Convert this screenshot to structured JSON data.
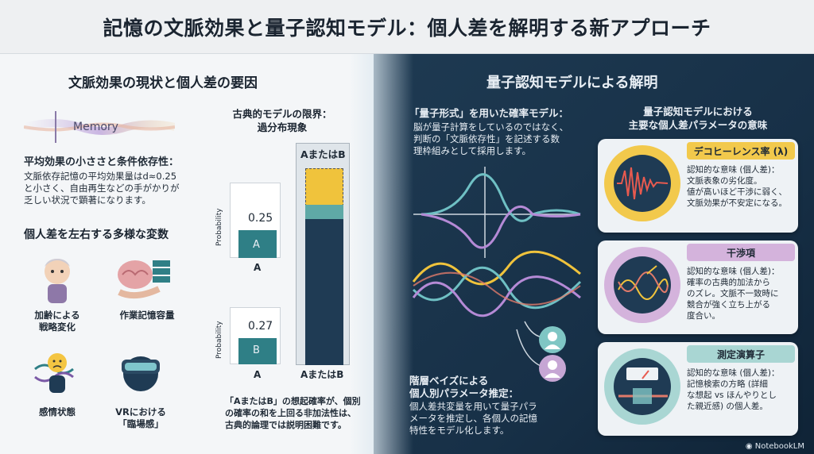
{
  "header": {
    "title": "記憶の文脈効果と量子認知モデル：個人差を解明する新アプローチ"
  },
  "left": {
    "title": "文脈効果の現状と個人差の要因",
    "memory_label": "Memory",
    "point1_title": "平均効果の小ささと条件依存性：",
    "point1_lines": [
      "文脈依存記憶の平均効果量はd≈0.25",
      "と小さく、自由再生などの手がかりが",
      "乏しい状況で顕著になります。"
    ],
    "vars_title": "個人差を左右する多様な変数",
    "vars": [
      {
        "label_lines": [
          "加齢による",
          "戦略変化"
        ]
      },
      {
        "label_lines": [
          "作業記憶容量"
        ]
      },
      {
        "label_lines": [
          "感情状態"
        ]
      },
      {
        "label_lines": [
          "VRにおける",
          "「臨場感」"
        ]
      }
    ],
    "classic_title_lines": [
      "古典的モデルの限界：",
      "過分布現象"
    ],
    "chart": {
      "a_value": "0.25",
      "b_value": "0.27",
      "a_label": "A",
      "b_label": "B",
      "ylabel": "Probability",
      "x_a": "A",
      "x_b": "A",
      "x_aorb": "AまたはB",
      "top_label": "AまたはB"
    },
    "classic_note_lines": [
      "「AまたはB」の想起確率が、個別",
      "の確率の和を上回る非加法性は、",
      "古典的論理では説明困難です。"
    ]
  },
  "right": {
    "title": "量子認知モデルによる解明",
    "qform_title": "「量子形式」を用いた確率モデル：",
    "qform_lines": [
      "脳が量子計算をしているのではなく、",
      "判断の「文脈依存性」を記述する数",
      "理枠組みとして採用します。"
    ],
    "bayes_title_lines": [
      "階層ベイズによる",
      "個人別パラメータ推定："
    ],
    "bayes_lines": [
      "個人差共変量を用いて量子パラ",
      "メータを推定し、各個人の記憶",
      "特性をモデル化します。"
    ],
    "params_title_lines": [
      "量子認知モデルにおける",
      "主要な個人差パラメータの意味"
    ],
    "cards": [
      {
        "title": "デコヒーレンス率 (λ)",
        "lines": [
          "認知的な意味 (個人差)：",
          "文脈表象の劣化度。",
          "値が高いほど干渉に弱く、",
          "文脈効果が不安定になる。"
        ]
      },
      {
        "title": "干渉項",
        "lines": [
          "認知的な意味 (個人差)：",
          "確率の古典的加法から",
          "のズレ。文脈不一致時に",
          "競合が強く立ち上がる",
          "度合い。"
        ]
      },
      {
        "title": "測定演算子",
        "lines": [
          "認知的な意味 (個人差)：",
          "記憶検索の方略 (詳細",
          "な想起 vs ほんやりとし",
          "た親近感) の個人差。"
        ]
      }
    ]
  },
  "footer": {
    "brand": "NotebookLM"
  },
  "colors": {
    "teal": "#2f7f86",
    "navy": "#1f3b54",
    "yellow": "#f0c33c",
    "purple": "#c6a6d4",
    "card_yellow": "#f2c94c",
    "card_purple": "#d4b3dc",
    "card_teal": "#a9d6d3"
  }
}
